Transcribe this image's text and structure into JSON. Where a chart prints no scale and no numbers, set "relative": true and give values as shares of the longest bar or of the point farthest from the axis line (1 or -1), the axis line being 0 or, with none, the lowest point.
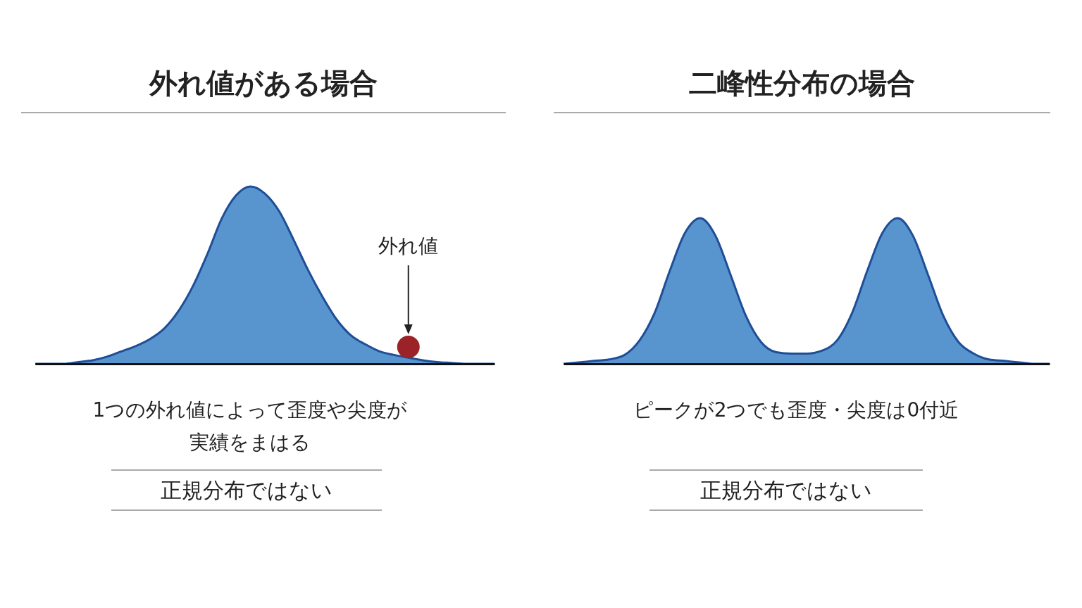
{
  "chart_data": [
    {
      "type": "area",
      "title": "外れ値がある場合",
      "relative": true,
      "categories": [
        null,
        null,
        null,
        null,
        null,
        null,
        null,
        null,
        null,
        null,
        null,
        null,
        null,
        null,
        null,
        null,
        null,
        null,
        null,
        null,
        null,
        null,
        null,
        null,
        null,
        null,
        null,
        null,
        null,
        null,
        null,
        null,
        null
      ],
      "series": [
        {
          "color": "#4f8fcc",
          "values": [
            0,
            0,
            0,
            0.01,
            0.02,
            0.04,
            0.07,
            0.1,
            0.14,
            0.2,
            0.3,
            0.44,
            0.62,
            0.82,
            0.95,
            1,
            0.96,
            0.86,
            0.7,
            0.53,
            0.38,
            0.25,
            0.16,
            0.11,
            0.07,
            0.05,
            0.035,
            0.02,
            0.01,
            0.005,
            0,
            0,
            0
          ]
        },
        {
          "type": "line",
          "marker": "circle",
          "color": "#9b2226",
          "values": [
            null,
            null,
            null,
            null,
            null,
            null,
            null,
            null,
            null,
            null,
            null,
            null,
            null,
            null,
            null,
            null,
            null,
            null,
            null,
            null,
            null,
            null,
            null,
            null,
            null,
            null,
            0.095,
            null,
            null,
            null,
            null,
            null,
            null
          ]
        }
      ],
      "annotations": [
        {
          "text": "外れ値"
        },
        "1つの外れ値によって歪度や尖度が実績をまはる",
        "正規分布ではない"
      ]
    },
    {
      "type": "area",
      "title": "二峰性分布の場合",
      "relative": true,
      "categories": [
        null,
        null,
        null,
        null,
        null,
        null,
        null,
        null,
        null,
        null,
        null,
        null,
        null,
        null,
        null,
        null,
        null,
        null,
        null,
        null,
        null,
        null,
        null,
        null,
        null,
        null,
        null,
        null,
        null,
        null,
        null,
        null,
        null
      ],
      "series": [
        {
          "color": "#4f8fcc",
          "values": [
            0,
            0.01,
            0.02,
            0.03,
            0.06,
            0.16,
            0.35,
            0.64,
            0.9,
            1,
            0.88,
            0.61,
            0.33,
            0.15,
            0.08,
            0.07,
            0.07,
            0.09,
            0.16,
            0.35,
            0.64,
            0.9,
            1,
            0.88,
            0.61,
            0.33,
            0.15,
            0.07,
            0.03,
            0.02,
            0.01,
            0,
            0
          ]
        }
      ],
      "annotations": [
        "ピークが2つでも歪度・尖度は0付近",
        "正規分布ではない"
      ]
    }
  ]
}
